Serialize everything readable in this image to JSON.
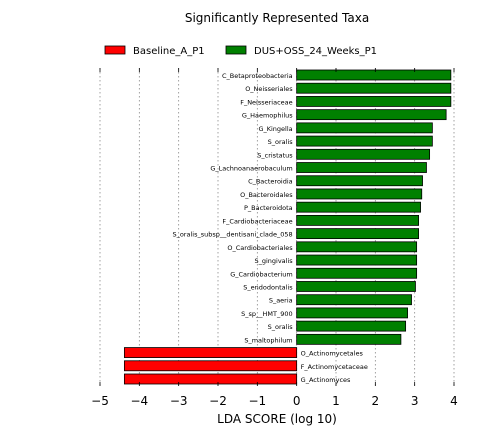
{
  "chart_data": {
    "type": "bar",
    "orientation": "horizontal",
    "title": "Significantly Represented Taxa",
    "xlabel": "LDA SCORE (log 10)",
    "xlim": [
      -5,
      4
    ],
    "xticks": [
      "−5",
      "−4",
      "−3",
      "−2",
      "−1",
      "0",
      "1",
      "2",
      "3",
      "4"
    ],
    "grid": "vertical dotted",
    "legend_position": "top",
    "series": [
      {
        "name": "Baseline_A_P1",
        "color": "#ff0000"
      },
      {
        "name": "DUS+OSS_24_Weeks_P1",
        "color": "#008000"
      }
    ],
    "bars": [
      {
        "label": "C_Betaproteobacteria",
        "value": 3.92,
        "group": 1
      },
      {
        "label": "O_Neisseriales",
        "value": 3.92,
        "group": 1
      },
      {
        "label": "F_Neisseriaceae",
        "value": 3.92,
        "group": 1
      },
      {
        "label": "G_Haemophilus",
        "value": 3.8,
        "group": 1
      },
      {
        "label": "G_Kingella",
        "value": 3.45,
        "group": 1
      },
      {
        "label": "S_oralis",
        "value": 3.45,
        "group": 1
      },
      {
        "label": "S_cristatus",
        "value": 3.38,
        "group": 1
      },
      {
        "label": "G_Lachnoanaerobaculum",
        "value": 3.3,
        "group": 1
      },
      {
        "label": "C_Bacteroidia",
        "value": 3.2,
        "group": 1
      },
      {
        "label": "O_Bacteroidales",
        "value": 3.18,
        "group": 1
      },
      {
        "label": "P_Bacteroidota",
        "value": 3.15,
        "group": 1
      },
      {
        "label": "F_Cardiobacteriaceae",
        "value": 3.1,
        "group": 1
      },
      {
        "label": "S_oralis_subsp__dentisani_clade_058",
        "value": 3.1,
        "group": 1
      },
      {
        "label": "O_Cardiobacteriales",
        "value": 3.05,
        "group": 1
      },
      {
        "label": "S_gingivalis",
        "value": 3.05,
        "group": 1
      },
      {
        "label": "G_Cardiobacterium",
        "value": 3.05,
        "group": 1
      },
      {
        "label": "S_endodontalis",
        "value": 3.02,
        "group": 1
      },
      {
        "label": "S_aeria",
        "value": 2.92,
        "group": 1
      },
      {
        "label": "S_sp__HMT_900",
        "value": 2.82,
        "group": 1
      },
      {
        "label": "S_oralis",
        "value": 2.77,
        "group": 1
      },
      {
        "label": "S_maltophilum",
        "value": 2.65,
        "group": 1
      },
      {
        "label": "O_Actinomycetales",
        "value": -4.38,
        "group": 0
      },
      {
        "label": "F_Actinomycetaceae",
        "value": -4.38,
        "group": 0
      },
      {
        "label": "G_Actinomyces",
        "value": -4.38,
        "group": 0
      }
    ]
  }
}
